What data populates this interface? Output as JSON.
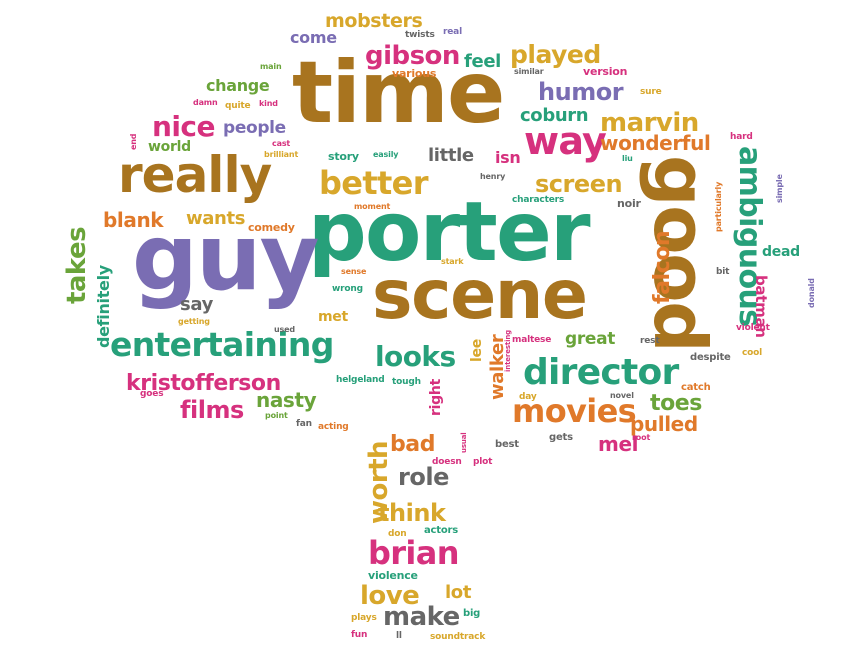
{
  "palette": {
    "brown": "#a8741f",
    "teal": "#27a07a",
    "purple": "#7a6db3",
    "magenta": "#d6317e",
    "orange": "#e0792a",
    "green": "#6aa43a",
    "gray": "#666666",
    "yellow": "#d8a72b"
  },
  "words": [
    {
      "text": "porter",
      "color": "teal"
    },
    {
      "text": "time",
      "color": "brown"
    },
    {
      "text": "scene",
      "color": "brown"
    },
    {
      "text": "guy",
      "color": "purple"
    },
    {
      "text": "good",
      "color": "brown"
    },
    {
      "text": "really",
      "color": "brown"
    },
    {
      "text": "entertaining",
      "color": "teal"
    },
    {
      "text": "director",
      "color": "teal"
    },
    {
      "text": "way",
      "color": "magenta"
    },
    {
      "text": "better",
      "color": "yellow"
    },
    {
      "text": "movies",
      "color": "orange"
    },
    {
      "text": "ambiguous",
      "color": "teal"
    },
    {
      "text": "brian",
      "color": "magenta"
    },
    {
      "text": "kristofferson",
      "color": "magenta"
    },
    {
      "text": "looks",
      "color": "teal"
    },
    {
      "text": "screen",
      "color": "yellow"
    },
    {
      "text": "marvin",
      "color": "yellow"
    },
    {
      "text": "nice",
      "color": "magenta"
    },
    {
      "text": "humor",
      "color": "purple"
    },
    {
      "text": "played",
      "color": "yellow"
    },
    {
      "text": "gibson",
      "color": "magenta"
    },
    {
      "text": "mobsters",
      "color": "yellow"
    },
    {
      "text": "coburn",
      "color": "teal"
    },
    {
      "text": "wonderful",
      "color": "orange"
    },
    {
      "text": "falcon",
      "color": "orange"
    },
    {
      "text": "takes",
      "color": "green"
    },
    {
      "text": "definitely",
      "color": "teal"
    },
    {
      "text": "films",
      "color": "magenta"
    },
    {
      "text": "nasty",
      "color": "green"
    },
    {
      "text": "worth",
      "color": "yellow"
    },
    {
      "text": "role",
      "color": "gray"
    },
    {
      "text": "think",
      "color": "yellow"
    },
    {
      "text": "love",
      "color": "yellow"
    },
    {
      "text": "make",
      "color": "gray"
    },
    {
      "text": "lot",
      "color": "yellow"
    },
    {
      "text": "bad",
      "color": "orange"
    },
    {
      "text": "toes",
      "color": "green"
    },
    {
      "text": "pulled",
      "color": "orange"
    },
    {
      "text": "mel",
      "color": "magenta"
    },
    {
      "text": "great",
      "color": "green"
    },
    {
      "text": "walker",
      "color": "orange"
    },
    {
      "text": "lee",
      "color": "yellow"
    },
    {
      "text": "batman",
      "color": "magenta"
    },
    {
      "text": "dead",
      "color": "teal"
    },
    {
      "text": "blank",
      "color": "orange"
    },
    {
      "text": "wants",
      "color": "yellow"
    },
    {
      "text": "people",
      "color": "purple"
    },
    {
      "text": "change",
      "color": "green"
    },
    {
      "text": "world",
      "color": "green"
    },
    {
      "text": "little",
      "color": "gray"
    },
    {
      "text": "isn",
      "color": "magenta"
    },
    {
      "text": "feel",
      "color": "teal"
    },
    {
      "text": "come",
      "color": "purple"
    },
    {
      "text": "say",
      "color": "gray"
    },
    {
      "text": "met",
      "color": "yellow"
    },
    {
      "text": "right",
      "color": "magenta"
    },
    {
      "text": "violence",
      "color": "teal"
    },
    {
      "text": "story",
      "color": "teal"
    },
    {
      "text": "comedy",
      "color": "orange"
    },
    {
      "text": "noir",
      "color": "gray"
    },
    {
      "text": "version",
      "color": "magenta"
    },
    {
      "text": "various",
      "color": "orange"
    },
    {
      "text": "twists",
      "color": "gray"
    },
    {
      "text": "real",
      "color": "purple"
    },
    {
      "text": "similar",
      "color": "gray"
    },
    {
      "text": "sure",
      "color": "yellow"
    },
    {
      "text": "hard",
      "color": "magenta"
    },
    {
      "text": "liu",
      "color": "teal"
    },
    {
      "text": "simple",
      "color": "purple"
    },
    {
      "text": "particularly",
      "color": "orange"
    },
    {
      "text": "bit",
      "color": "gray"
    },
    {
      "text": "donald",
      "color": "purple"
    },
    {
      "text": "violent",
      "color": "magenta"
    },
    {
      "text": "cool",
      "color": "yellow"
    },
    {
      "text": "despite",
      "color": "gray"
    },
    {
      "text": "rest",
      "color": "gray"
    },
    {
      "text": "catch",
      "color": "orange"
    },
    {
      "text": "novel",
      "color": "gray"
    },
    {
      "text": "day",
      "color": "yellow"
    },
    {
      "text": "root",
      "color": "magenta"
    },
    {
      "text": "gets",
      "color": "gray"
    },
    {
      "text": "best",
      "color": "gray"
    },
    {
      "text": "interesting",
      "color": "magenta"
    },
    {
      "text": "maltese",
      "color": "magenta"
    },
    {
      "text": "usual",
      "color": "magenta"
    },
    {
      "text": "plot",
      "color": "magenta"
    },
    {
      "text": "doesn",
      "color": "magenta"
    },
    {
      "text": "actors",
      "color": "teal"
    },
    {
      "text": "don",
      "color": "yellow"
    },
    {
      "text": "big",
      "color": "teal"
    },
    {
      "text": "plays",
      "color": "yellow"
    },
    {
      "text": "fun",
      "color": "magenta"
    },
    {
      "text": "ll",
      "color": "gray"
    },
    {
      "text": "soundtrack",
      "color": "yellow"
    },
    {
      "text": "helgeland",
      "color": "teal"
    },
    {
      "text": "tough",
      "color": "teal"
    },
    {
      "text": "acting",
      "color": "orange"
    },
    {
      "text": "fan",
      "color": "gray"
    },
    {
      "text": "point",
      "color": "green"
    },
    {
      "text": "goes",
      "color": "magenta"
    },
    {
      "text": "used",
      "color": "gray"
    },
    {
      "text": "getting",
      "color": "yellow"
    },
    {
      "text": "wrong",
      "color": "teal"
    },
    {
      "text": "sense",
      "color": "orange"
    },
    {
      "text": "stark",
      "color": "yellow"
    },
    {
      "text": "moment",
      "color": "orange"
    },
    {
      "text": "characters",
      "color": "teal"
    },
    {
      "text": "henry",
      "color": "gray"
    },
    {
      "text": "easily",
      "color": "teal"
    },
    {
      "text": "brilliant",
      "color": "yellow"
    },
    {
      "text": "cast",
      "color": "magenta"
    },
    {
      "text": "end",
      "color": "magenta"
    },
    {
      "text": "damn",
      "color": "magenta"
    },
    {
      "text": "quite",
      "color": "yellow"
    },
    {
      "text": "kind",
      "color": "magenta"
    },
    {
      "text": "main",
      "color": "green"
    }
  ]
}
